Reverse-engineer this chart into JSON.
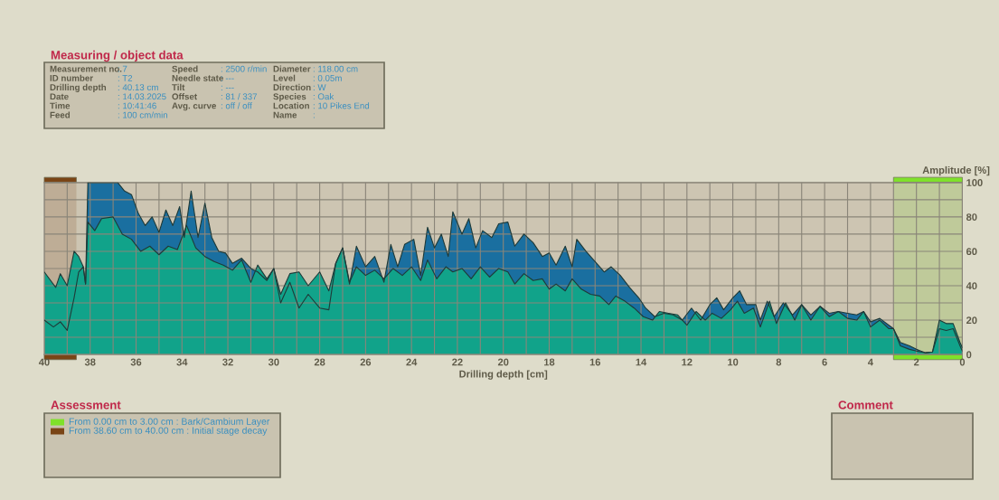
{
  "chart_data": {
    "type": "area",
    "xlabel": "Drilling depth [cm]",
    "ylabel": "Amplitude [%]",
    "xlim": [
      40,
      0
    ],
    "xticks": [
      40,
      {
        "value": 39,
        "label": null
      },
      38,
      {
        "value": 37,
        "label": null
      },
      36,
      {
        "value": 35,
        "label": null
      },
      34,
      {
        "value": 33,
        "label": null
      },
      32,
      {
        "value": 31,
        "label": null
      },
      30,
      {
        "value": 29,
        "label": null
      },
      28,
      {
        "value": 27,
        "label": null
      },
      26,
      {
        "value": 25,
        "label": null
      },
      24,
      {
        "value": 23,
        "label": null
      },
      22,
      {
        "value": 21,
        "label": null
      },
      20,
      {
        "value": 19,
        "label": null
      },
      18,
      {
        "value": 17,
        "label": null
      },
      16,
      {
        "value": 15,
        "label": null
      },
      14,
      {
        "value": 13,
        "label": null
      },
      12,
      {
        "value": 11,
        "label": null
      },
      10,
      {
        "value": 9,
        "label": null
      },
      8,
      {
        "value": 7,
        "label": null
      },
      6,
      {
        "value": 5,
        "label": null
      },
      4,
      {
        "value": 3,
        "label": null
      },
      2,
      {
        "value": 1,
        "label": null
      },
      0
    ],
    "ylim": [
      0,
      100
    ],
    "yticks": [
      0,
      {
        "value": 10,
        "label": null
      },
      20,
      {
        "value": 30,
        "label": null
      },
      40,
      {
        "value": 50,
        "label": null
      },
      60,
      {
        "value": 70,
        "label": null
      },
      80,
      {
        "value": 90,
        "label": null
      },
      100
    ],
    "grid": true,
    "legend": "bottom left",
    "series": [
      {
        "color": "#1a6fa0",
        "x": [
          40,
          39.6,
          39.3,
          39.0,
          38.7,
          38.5,
          38.3,
          38.2,
          38.1,
          37.5,
          36.8,
          36.5,
          36.2,
          35.9,
          35.6,
          35.3,
          35.0,
          34.7,
          34.4,
          34.1,
          33.9,
          33.6,
          33.3,
          33.0,
          32.7,
          32.4,
          32.1,
          31.8,
          31.4,
          31.0,
          30.7,
          30.3,
          30.0,
          29.7,
          29.3,
          28.9,
          28.5,
          28.0,
          27.6,
          27.3,
          27.0,
          26.7,
          26.4,
          26.0,
          25.6,
          25.2,
          24.9,
          24.6,
          24.3,
          23.9,
          23.6,
          23.3,
          23.0,
          22.7,
          22.4,
          22.2,
          21.8,
          21.5,
          21.2,
          20.9,
          20.5,
          20.2,
          19.8,
          19.5,
          19.1,
          18.7,
          18.3,
          18.0,
          17.7,
          17.3,
          17.0,
          16.8,
          16.4,
          16.0,
          15.6,
          15.3,
          14.9,
          14.5,
          14.1,
          13.8,
          13.4,
          13.0,
          12.6,
          12.2,
          11.8,
          11.4,
          11.0,
          10.7,
          10.4,
          10.0,
          9.7,
          9.4,
          9.0,
          8.8,
          8.5,
          8.2,
          7.8,
          7.4,
          7.0,
          6.6,
          6.2,
          5.8,
          5.4,
          5.0,
          4.6,
          4.3,
          4.0,
          3.6,
          3.2,
          3.0,
          2.7,
          2.3,
          2.0,
          1.6,
          1.3,
          1.0,
          0.7,
          0.4,
          0.1,
          0
        ],
        "values": [
          20,
          16,
          19,
          14,
          33,
          48,
          51,
          41,
          100,
          100,
          100,
          95,
          93,
          82,
          75,
          80,
          71,
          84,
          75,
          86,
          68,
          95,
          68,
          88,
          68,
          60,
          59,
          53,
          56,
          50,
          48,
          43,
          50,
          30,
          42,
          27,
          35,
          27,
          26,
          53,
          62,
          41,
          63,
          51,
          57,
          42,
          64,
          51,
          64,
          67,
          46,
          74,
          62,
          70,
          57,
          83,
          70,
          79,
          62,
          72,
          68,
          76,
          77,
          63,
          70,
          65,
          57,
          59,
          52,
          63,
          51,
          67,
          60,
          54,
          48,
          51,
          46,
          39,
          33,
          27,
          22,
          24,
          23,
          20,
          27,
          20,
          29,
          33,
          26,
          33,
          37,
          29,
          29,
          20,
          31,
          22,
          30,
          23,
          29,
          23,
          28,
          24,
          25,
          24,
          23,
          25,
          19,
          21,
          17,
          15,
          7,
          5,
          3,
          1,
          1.5,
          15,
          14,
          15,
          5,
          2
        ]
      },
      {
        "color": "#11a38a",
        "x": [
          40,
          39.5,
          39.3,
          39.0,
          38.7,
          38.5,
          38.3,
          38.2,
          38.1,
          37.8,
          37.5,
          37.0,
          36.6,
          36.2,
          35.8,
          35.4,
          35.0,
          34.6,
          34.2,
          33.8,
          33.4,
          33.0,
          32.6,
          32.2,
          31.8,
          31.4,
          31.0,
          30.7,
          30.3,
          30.0,
          29.7,
          29.3,
          28.9,
          28.5,
          28.0,
          27.6,
          27.3,
          27.0,
          26.7,
          26.4,
          26.0,
          25.6,
          25.2,
          24.8,
          24.4,
          24.0,
          23.6,
          23.3,
          22.9,
          22.5,
          22.2,
          21.8,
          21.4,
          21.0,
          20.6,
          20.2,
          19.8,
          19.5,
          19.1,
          18.7,
          18.3,
          18.0,
          17.7,
          17.3,
          17.0,
          16.6,
          16.2,
          15.8,
          15.4,
          15.1,
          14.7,
          14.3,
          13.9,
          13.5,
          13.2,
          12.8,
          12.4,
          12.0,
          11.6,
          11.2,
          10.9,
          10.5,
          10.1,
          9.8,
          9.5,
          9.1,
          8.8,
          8.4,
          8.1,
          7.7,
          7.3,
          7.0,
          6.6,
          6.2,
          5.8,
          5.4,
          5.0,
          4.6,
          4.3,
          4.0,
          3.6,
          3.2,
          3.0,
          2.7,
          2.3,
          2.0,
          1.6,
          1.3,
          1.0,
          0.7,
          0.4,
          0.1,
          0
        ],
        "values": [
          48,
          39,
          47,
          40,
          60,
          57,
          51,
          41,
          77,
          72,
          79,
          80,
          70,
          67,
          60,
          63,
          58,
          63,
          61,
          75,
          62,
          57,
          54,
          52,
          49,
          55,
          42,
          52,
          44,
          50,
          35,
          47,
          48,
          40,
          48,
          37,
          53,
          62,
          42,
          51,
          46,
          49,
          44,
          50,
          46,
          51,
          43,
          55,
          44,
          51,
          48,
          50,
          44,
          51,
          45,
          50,
          48,
          41,
          47,
          43,
          44,
          38,
          41,
          37,
          44,
          38,
          35,
          34,
          29,
          34,
          31,
          27,
          22,
          20,
          25,
          24,
          23,
          17,
          25,
          20,
          24,
          21,
          26,
          31,
          24,
          27,
          16,
          31,
          18,
          30,
          20,
          29,
          20,
          28,
          22,
          25,
          21,
          20,
          25,
          16,
          20,
          15,
          15,
          5,
          3,
          2,
          1,
          1.5,
          20,
          18,
          18,
          7,
          4
        ]
      }
    ],
    "bands": [
      {
        "axis": "x",
        "from": 0,
        "to": 3,
        "color": "#7fe12a",
        "label": "From 0.00 cm to 3.00 cm : Bark/Cambium Layer"
      },
      {
        "axis": "x",
        "from": 38.6,
        "to": 40,
        "color": "#7a4516",
        "label": "From 38.60 cm to 40.00 cm : Initial stage decay"
      }
    ],
    "annotations": [
      "Measuring / object data",
      "Measurement no.: 7",
      "ID number: T2",
      "Drilling depth: 40.13 cm",
      "Date: 14.03.2025",
      "Time: 10:41:46",
      "Feed: 100 cm/min",
      "Speed: 2500 r/min",
      "Needle state: ---",
      "Tilt: ---",
      "Offset: 81 / 337",
      "Avg. curve: off / off",
      "Diameter: 118.00 cm",
      "Level: 0.05m",
      "Direction: W",
      "Species: Oak",
      "Location: 10 Pikes End",
      "Name:",
      "Assessment",
      "Comment"
    ]
  }
}
